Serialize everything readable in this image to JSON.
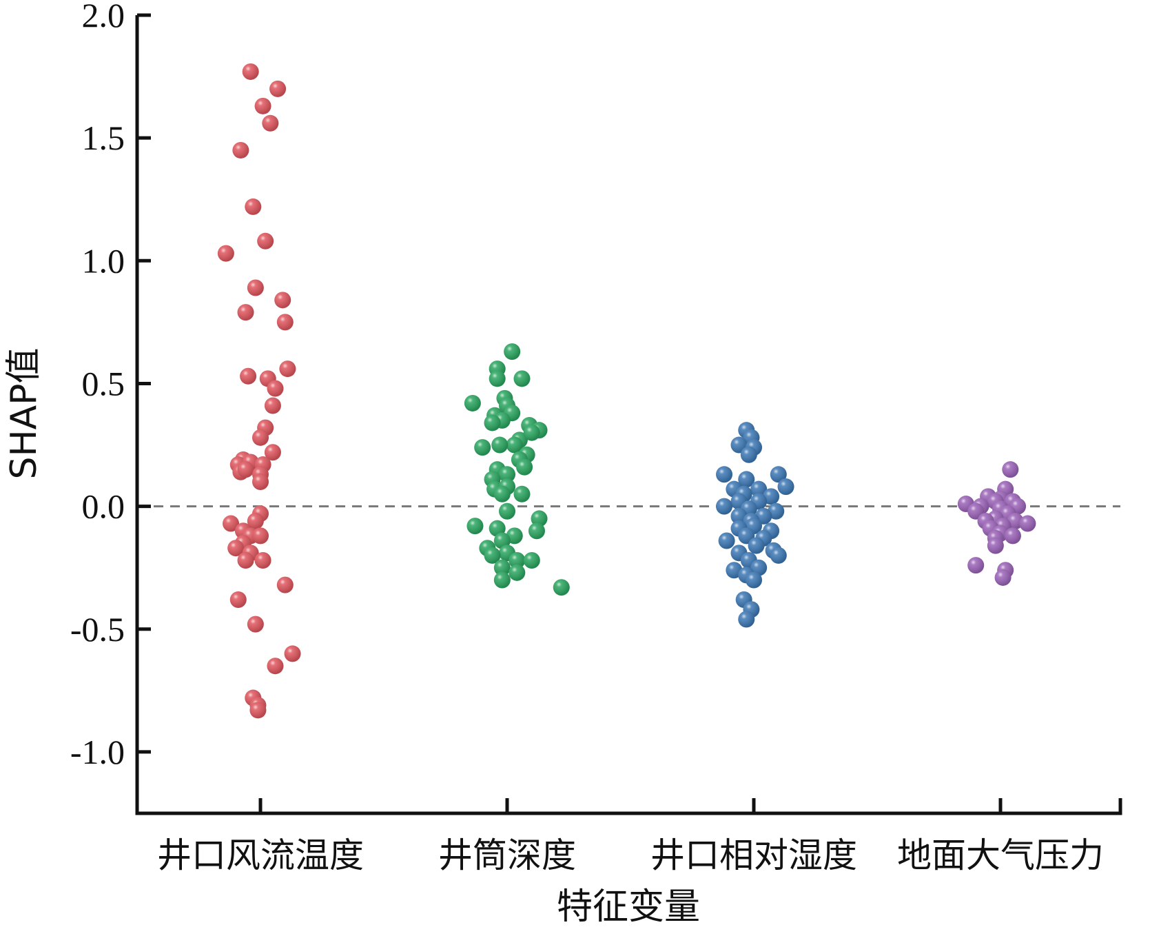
{
  "chart_data": {
    "type": "scatter",
    "xlabel": "特征变量",
    "ylabel": "SHAP值",
    "ylim": [
      -1.25,
      2.0
    ],
    "yticks": [
      "-1.0",
      "-0.5",
      "0.0",
      "0.5",
      "1.0",
      "1.5",
      "2.0"
    ],
    "ytick_values": [
      -1.0,
      -0.5,
      0.0,
      0.5,
      1.0,
      1.5,
      2.0
    ],
    "categories": [
      "井口风流温度",
      "井筒深度",
      "井口相对湿度",
      "地面大气压力"
    ],
    "reference_line": 0.0,
    "grid": false,
    "series": [
      {
        "category": "井口风流温度",
        "color": "#e0565e",
        "points": [
          [
            -0.04,
            1.77
          ],
          [
            0.07,
            1.7
          ],
          [
            0.01,
            1.63
          ],
          [
            0.04,
            1.56
          ],
          [
            -0.08,
            1.45
          ],
          [
            -0.03,
            1.22
          ],
          [
            0.02,
            1.08
          ],
          [
            -0.14,
            1.03
          ],
          [
            -0.02,
            0.89
          ],
          [
            0.09,
            0.84
          ],
          [
            -0.06,
            0.79
          ],
          [
            0.1,
            0.75
          ],
          [
            0.11,
            0.56
          ],
          [
            -0.05,
            0.53
          ],
          [
            0.03,
            0.52
          ],
          [
            0.06,
            0.48
          ],
          [
            0.05,
            0.41
          ],
          [
            0.02,
            0.32
          ],
          [
            0.0,
            0.28
          ],
          [
            0.05,
            0.22
          ],
          [
            -0.07,
            0.19
          ],
          [
            -0.09,
            0.17
          ],
          [
            -0.04,
            0.18
          ],
          [
            -0.08,
            0.14
          ],
          [
            -0.06,
            0.15
          ],
          [
            0.01,
            0.17
          ],
          [
            0.0,
            0.13
          ],
          [
            0.0,
            0.1
          ],
          [
            0.0,
            -0.03
          ],
          [
            -0.02,
            -0.06
          ],
          [
            -0.12,
            -0.07
          ],
          [
            -0.07,
            -0.1
          ],
          [
            -0.04,
            -0.12
          ],
          [
            0.0,
            -0.12
          ],
          [
            -0.07,
            -0.15
          ],
          [
            -0.1,
            -0.17
          ],
          [
            -0.04,
            -0.19
          ],
          [
            -0.06,
            -0.22
          ],
          [
            0.01,
            -0.22
          ],
          [
            0.1,
            -0.32
          ],
          [
            -0.09,
            -0.38
          ],
          [
            -0.02,
            -0.48
          ],
          [
            0.13,
            -0.6
          ],
          [
            0.06,
            -0.65
          ],
          [
            -0.03,
            -0.78
          ],
          [
            -0.01,
            -0.81
          ],
          [
            -0.01,
            -0.83
          ]
        ]
      },
      {
        "category": "井筒深度",
        "color": "#2aa660",
        "points": [
          [
            0.02,
            0.63
          ],
          [
            -0.04,
            0.56
          ],
          [
            0.06,
            0.52
          ],
          [
            -0.04,
            0.52
          ],
          [
            -0.01,
            0.44
          ],
          [
            -0.14,
            0.42
          ],
          [
            0.0,
            0.41
          ],
          [
            0.02,
            0.38
          ],
          [
            -0.05,
            0.37
          ],
          [
            -0.02,
            0.35
          ],
          [
            0.09,
            0.33
          ],
          [
            -0.06,
            0.34
          ],
          [
            0.13,
            0.31
          ],
          [
            0.05,
            0.27
          ],
          [
            0.1,
            0.3
          ],
          [
            0.03,
            0.25
          ],
          [
            -0.03,
            0.25
          ],
          [
            -0.1,
            0.24
          ],
          [
            0.08,
            0.21
          ],
          [
            0.05,
            0.19
          ],
          [
            0.07,
            0.16
          ],
          [
            -0.04,
            0.15
          ],
          [
            0.0,
            0.13
          ],
          [
            -0.06,
            0.11
          ],
          [
            -0.05,
            0.07
          ],
          [
            0.0,
            0.08
          ],
          [
            0.06,
            0.05
          ],
          [
            -0.02,
            0.05
          ],
          [
            0.0,
            -0.02
          ],
          [
            0.13,
            -0.05
          ],
          [
            -0.13,
            -0.08
          ],
          [
            -0.04,
            -0.09
          ],
          [
            0.12,
            -0.1
          ],
          [
            0.03,
            -0.12
          ],
          [
            -0.02,
            -0.14
          ],
          [
            -0.08,
            -0.17
          ],
          [
            0.0,
            -0.19
          ],
          [
            -0.06,
            -0.2
          ],
          [
            0.04,
            -0.22
          ],
          [
            0.1,
            -0.22
          ],
          [
            -0.02,
            -0.25
          ],
          [
            0.04,
            -0.27
          ],
          [
            -0.02,
            -0.3
          ],
          [
            0.22,
            -0.33
          ]
        ]
      },
      {
        "category": "井口相对湿度",
        "color": "#3d78b5",
        "points": [
          [
            -0.03,
            0.31
          ],
          [
            -0.01,
            0.28
          ],
          [
            -0.06,
            0.25
          ],
          [
            0.0,
            0.24
          ],
          [
            -0.02,
            0.21
          ],
          [
            -0.12,
            0.13
          ],
          [
            -0.03,
            0.11
          ],
          [
            0.1,
            0.13
          ],
          [
            0.13,
            0.08
          ],
          [
            0.02,
            0.07
          ],
          [
            -0.08,
            0.07
          ],
          [
            -0.04,
            0.05
          ],
          [
            0.07,
            0.04
          ],
          [
            0.02,
            0.02
          ],
          [
            -0.06,
            0.02
          ],
          [
            -0.12,
            0.0
          ],
          [
            -0.02,
            -0.01
          ],
          [
            0.09,
            -0.02
          ],
          [
            0.04,
            -0.04
          ],
          [
            -0.06,
            -0.04
          ],
          [
            -0.01,
            -0.06
          ],
          [
            0.0,
            -0.08
          ],
          [
            -0.06,
            -0.09
          ],
          [
            0.07,
            -0.1
          ],
          [
            -0.03,
            -0.12
          ],
          [
            0.04,
            -0.13
          ],
          [
            -0.11,
            -0.14
          ],
          [
            0.01,
            -0.16
          ],
          [
            0.08,
            -0.18
          ],
          [
            -0.06,
            -0.19
          ],
          [
            0.1,
            -0.2
          ],
          [
            -0.02,
            -0.22
          ],
          [
            0.02,
            -0.25
          ],
          [
            -0.08,
            -0.26
          ],
          [
            -0.03,
            -0.28
          ],
          [
            0.0,
            -0.3
          ],
          [
            -0.04,
            -0.38
          ],
          [
            -0.01,
            -0.42
          ],
          [
            -0.03,
            -0.46
          ]
        ]
      },
      {
        "category": "地面大气压力",
        "color": "#9b63b8",
        "points": [
          [
            0.04,
            0.15
          ],
          [
            0.02,
            0.07
          ],
          [
            -0.05,
            0.04
          ],
          [
            0.0,
            0.03
          ],
          [
            -0.02,
            0.02
          ],
          [
            -0.14,
            0.01
          ],
          [
            0.05,
            0.02
          ],
          [
            -0.08,
            0.0
          ],
          [
            0.07,
            0.0
          ],
          [
            0.0,
            -0.01
          ],
          [
            -0.1,
            -0.02
          ],
          [
            0.03,
            -0.03
          ],
          [
            -0.02,
            -0.05
          ],
          [
            0.06,
            -0.06
          ],
          [
            -0.06,
            -0.06
          ],
          [
            0.01,
            -0.08
          ],
          [
            -0.04,
            -0.09
          ],
          [
            0.11,
            -0.07
          ],
          [
            0.0,
            -0.11
          ],
          [
            -0.02,
            -0.13
          ],
          [
            0.05,
            -0.12
          ],
          [
            -0.02,
            -0.16
          ],
          [
            -0.1,
            -0.24
          ],
          [
            0.02,
            -0.26
          ],
          [
            0.01,
            -0.29
          ]
        ]
      }
    ]
  }
}
